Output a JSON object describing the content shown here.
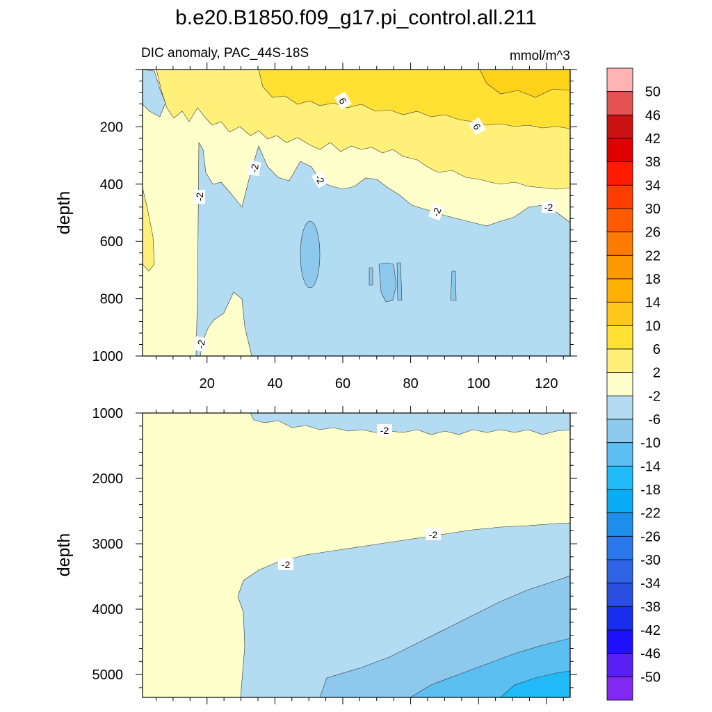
{
  "figure": {
    "title": "b.e20.B1850.f09_g17.pi_control.all.211",
    "left_string": "DIC anomaly, PAC_44S-18S",
    "right_string": "mmol/m^3"
  },
  "chart_data": [
    {
      "type": "heatmap",
      "panel": "upper",
      "ylabel": "depth",
      "xlabel": "",
      "xlim": [
        1,
        127
      ],
      "ylim": [
        1000,
        0
      ],
      "x_ticks": [
        "20",
        "40",
        "60",
        "80",
        "100",
        "120"
      ],
      "y_ticks": [
        "200",
        "400",
        "600",
        "800",
        "1000"
      ],
      "contour_labels": [
        "6",
        "6",
        "-2",
        "-2",
        "-2",
        "-2",
        "-2",
        "-2"
      ],
      "regions": [
        {
          "name": "-2 to 2",
          "description": "background"
        },
        {
          "name": "2 to 6",
          "description": "upper ~300 m east of x=20, thick band near surface"
        },
        {
          "name": "6 to 10",
          "description": "surface layer x>30, depth <200"
        },
        {
          "name": "-6 to -2",
          "description": "main body below 250-500 m east of x=20"
        },
        {
          "name": "-10 to -6",
          "description": "small patches near x=50 and x=70-92 at 600-800 m"
        }
      ]
    },
    {
      "type": "heatmap",
      "panel": "lower",
      "ylabel": "depth",
      "xlabel": "",
      "xlim": [
        1,
        127
      ],
      "ylim": [
        5350,
        1000
      ],
      "x_ticks": [],
      "y_ticks": [
        "1000",
        "2000",
        "3000",
        "4000",
        "5000"
      ],
      "contour_labels": [
        "-2",
        "-2",
        "-2"
      ],
      "regions": [
        {
          "name": "-2 to 2",
          "description": "background, 1000-3000 m and west of x=33"
        },
        {
          "name": "-6 to -2",
          "description": "thin layer at top x>33 and deep region below ~3000 m east of x=30"
        },
        {
          "name": "-10 to -6",
          "description": "deep wedge below ~3500-4800 m, eastern side"
        },
        {
          "name": "-14 to -10",
          "description": "deepest eastern corner"
        },
        {
          "name": "-18 to -14",
          "description": "bottom right corner x>110"
        }
      ]
    }
  ],
  "colorbar": {
    "labels": [
      "50",
      "46",
      "42",
      "38",
      "34",
      "30",
      "26",
      "22",
      "18",
      "14",
      "10",
      "6",
      "2",
      "-2",
      "-6",
      "-10",
      "-14",
      "-18",
      "-22",
      "-26",
      "-30",
      "-34",
      "-38",
      "-42",
      "-46",
      "-50"
    ],
    "colors": [
      "#ffb3b3",
      "#e35353",
      "#cc1111",
      "#e00000",
      "#ff1a00",
      "#ff3c00",
      "#ff5a00",
      "#ff7a00",
      "#ff9900",
      "#ffb000",
      "#ffc71a",
      "#ffe033",
      "#fff07a",
      "#ffffcc",
      "#b3dcf2",
      "#8cc9ed",
      "#5cbff2",
      "#1fbaf7",
      "#0aacf5",
      "#1f8fee",
      "#2a78eb",
      "#2f63e6",
      "#2a4fe0",
      "#1a2ef0",
      "#1e10fa",
      "#5a1ff5",
      "#8228f0"
    ]
  },
  "palette": {
    "bg": "#ffffcc",
    "pos2": "#fff07a",
    "pos6": "#ffe033",
    "neg2": "#b3dcf2",
    "neg6": "#8cc9ed",
    "neg10": "#5cbff2",
    "neg14": "#1fbaf7"
  }
}
